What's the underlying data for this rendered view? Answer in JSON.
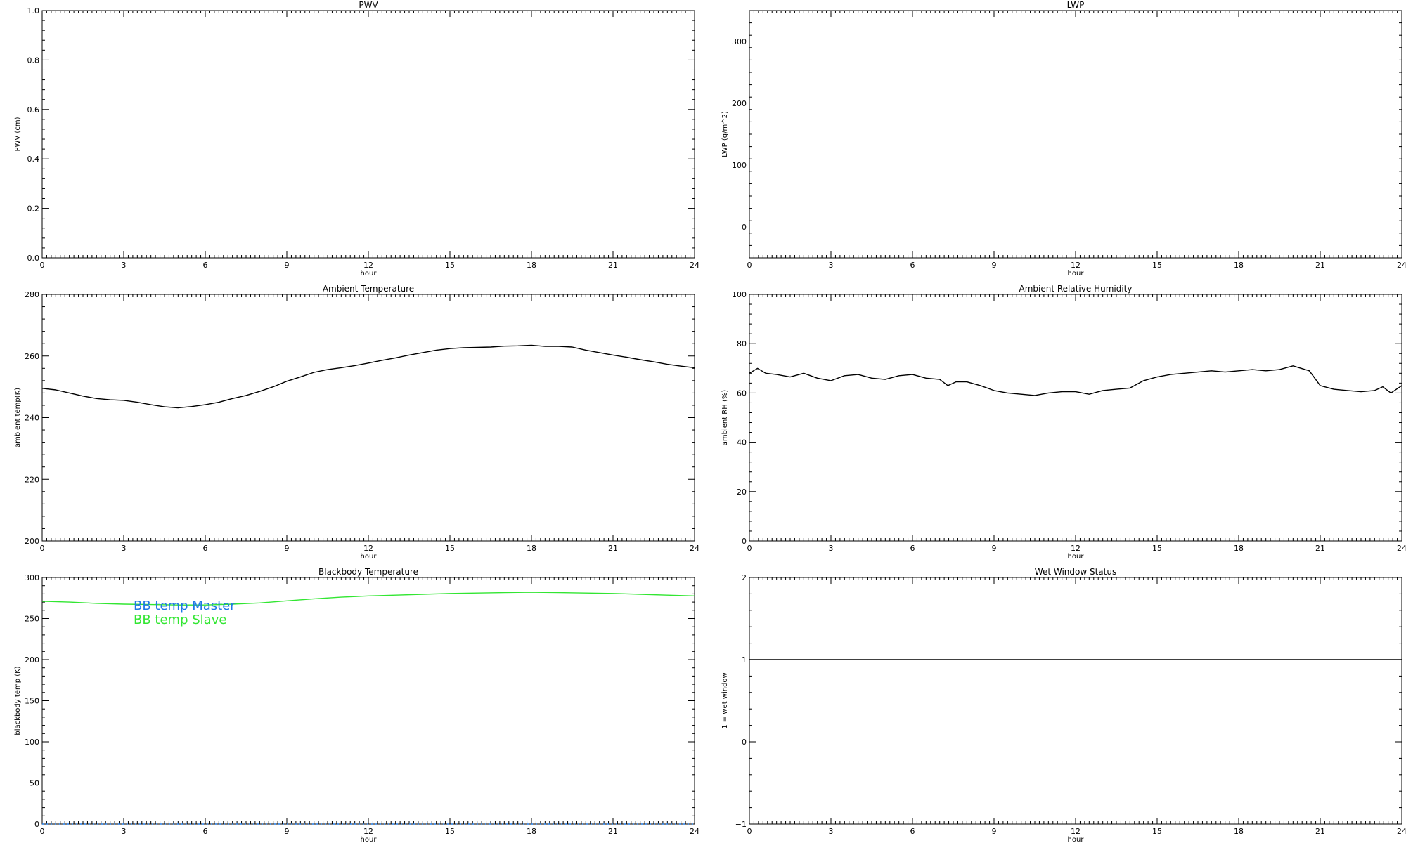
{
  "chart_data": [
    {
      "type": "line",
      "title": "PWV",
      "xlabel": "hour",
      "ylabel": "PWV (cm)",
      "xlim": [
        0,
        24
      ],
      "ylim": [
        0,
        1
      ],
      "xticks": [
        0,
        3,
        6,
        9,
        12,
        15,
        18,
        21,
        24
      ],
      "yticks": [
        0.0,
        0.2,
        0.4,
        0.6,
        0.8,
        1.0
      ],
      "ytick_labels": [
        "0.0",
        "0.2",
        "0.4",
        "0.6",
        "0.8",
        "1.0"
      ],
      "series": []
    },
    {
      "type": "line",
      "title": "LWP",
      "xlabel": "hour",
      "ylabel": "LWP (g/m^2)",
      "xlim": [
        0,
        24
      ],
      "ylim": [
        -50,
        350
      ],
      "xticks": [
        0,
        3,
        6,
        9,
        12,
        15,
        18,
        21,
        24
      ],
      "yticks": [
        0,
        100,
        200,
        300
      ],
      "ytick_labels": [
        "0",
        "100",
        "200",
        "300"
      ],
      "series": []
    },
    {
      "type": "line",
      "title": "Ambient Temperature",
      "xlabel": "hour",
      "ylabel": "ambient temp(K)",
      "xlim": [
        0,
        24
      ],
      "ylim": [
        200,
        280
      ],
      "xticks": [
        0,
        3,
        6,
        9,
        12,
        15,
        18,
        21,
        24
      ],
      "yticks": [
        200,
        220,
        240,
        260,
        280
      ],
      "ytick_labels": [
        "200",
        "220",
        "240",
        "260",
        "280"
      ],
      "series": [
        {
          "color": "#000000",
          "x": [
            0,
            0.5,
            1,
            1.5,
            2,
            2.5,
            3,
            3.5,
            4,
            4.5,
            5,
            5.5,
            6,
            6.5,
            7,
            7.5,
            8,
            8.5,
            9,
            9.5,
            10,
            10.5,
            11,
            11.5,
            12,
            12.5,
            13,
            13.5,
            14,
            14.5,
            15,
            15.5,
            16,
            16.5,
            17,
            17.5,
            18,
            18.5,
            19,
            19.5,
            20,
            20.5,
            21,
            21.5,
            22,
            22.5,
            23,
            23.5,
            24
          ],
          "y": [
            249.5,
            249,
            248,
            247,
            246.2,
            245.8,
            245.6,
            245,
            244.2,
            243.5,
            243.2,
            243.6,
            244.2,
            245,
            246.2,
            247.2,
            248.5,
            250,
            251.8,
            253.2,
            254.7,
            255.6,
            256.2,
            256.9,
            257.7,
            258.6,
            259.4,
            260.3,
            261.1,
            261.9,
            262.4,
            262.7,
            262.8,
            262.9,
            263.2,
            263.3,
            263.5,
            263.1,
            263.1,
            262.9,
            261.9,
            261.1,
            260.3,
            259.6,
            258.8,
            258.1,
            257.3,
            256.7,
            256.2
          ]
        }
      ]
    },
    {
      "type": "line",
      "title": "Ambient Relative Humidity",
      "xlabel": "hour",
      "ylabel": "ambient RH (%)",
      "xlim": [
        0,
        24
      ],
      "ylim": [
        0,
        100
      ],
      "xticks": [
        0,
        3,
        6,
        9,
        12,
        15,
        18,
        21,
        24
      ],
      "yticks": [
        0,
        20,
        40,
        60,
        80,
        100
      ],
      "ytick_labels": [
        "0",
        "20",
        "40",
        "60",
        "80",
        "100"
      ],
      "series": [
        {
          "color": "#000000",
          "x": [
            0,
            0.3,
            0.6,
            1,
            1.5,
            2,
            2.5,
            3,
            3.5,
            4,
            4.5,
            5,
            5.5,
            6,
            6.5,
            7,
            7.3,
            7.6,
            8,
            8.5,
            9,
            9.5,
            10,
            10.5,
            11,
            11.5,
            12,
            12.5,
            13,
            13.5,
            14,
            14.5,
            15,
            15.5,
            16,
            16.5,
            17,
            17.5,
            18,
            18.5,
            19,
            19.5,
            20,
            20.3,
            20.6,
            21,
            21.5,
            22,
            22.5,
            23,
            23.3,
            23.6,
            24
          ],
          "y": [
            68,
            70,
            68,
            67.5,
            66.5,
            68,
            66,
            65,
            67,
            67.5,
            66,
            65.5,
            67,
            67.5,
            66,
            65.5,
            63,
            64.5,
            64.5,
            63,
            61,
            60,
            59.5,
            59,
            60,
            60.5,
            60.5,
            59.5,
            61,
            61.5,
            62,
            65,
            66.5,
            67.5,
            68,
            68.5,
            69,
            68.5,
            69,
            69.5,
            69,
            69.5,
            71,
            70,
            69,
            63,
            61.5,
            61,
            60.5,
            61,
            62.5,
            60,
            63
          ]
        }
      ]
    },
    {
      "type": "line",
      "title": "Blackbody Temperature",
      "xlabel": "hour",
      "ylabel": "blackbody temp (K)",
      "xlim": [
        0,
        24
      ],
      "ylim": [
        0,
        300
      ],
      "xticks": [
        0,
        3,
        6,
        9,
        12,
        15,
        18,
        21,
        24
      ],
      "yticks": [
        0,
        50,
        100,
        150,
        200,
        250,
        300
      ],
      "ytick_labels": [
        "0",
        "50",
        "100",
        "150",
        "200",
        "250",
        "300"
      ],
      "legend": [
        "BB temp Master",
        "BB temp Slave"
      ],
      "legend_colors": [
        "#1e78e6",
        "#32e632"
      ],
      "series": [
        {
          "name": "BB temp Master",
          "color": "#1e78e6",
          "style": "dotted",
          "x": [
            0,
            3,
            6,
            9,
            12,
            15,
            18,
            21,
            24
          ],
          "y": [
            0,
            0,
            0,
            0,
            0,
            0,
            0,
            0,
            0
          ]
        },
        {
          "name": "BB temp Slave",
          "color": "#32e632",
          "x": [
            0,
            1,
            2,
            3,
            4,
            5,
            6,
            7,
            8,
            9,
            10,
            11,
            12,
            13,
            14,
            15,
            16,
            17,
            18,
            19,
            20,
            21,
            22,
            23,
            24
          ],
          "y": [
            271,
            270,
            268.5,
            267.5,
            267,
            266.5,
            266.5,
            267.5,
            269,
            271.5,
            274,
            276,
            277.5,
            278.5,
            279.5,
            280.5,
            281,
            281.5,
            282,
            281.5,
            281,
            280.5,
            279.5,
            278.5,
            277.5
          ]
        }
      ]
    },
    {
      "type": "line",
      "title": "Wet Window Status",
      "xlabel": "hour",
      "ylabel": "1 = wet window",
      "xlim": [
        0,
        24
      ],
      "ylim": [
        -1,
        2
      ],
      "xticks": [
        0,
        3,
        6,
        9,
        12,
        15,
        18,
        21,
        24
      ],
      "yticks": [
        -1,
        0,
        1,
        2
      ],
      "ytick_labels": [
        "−1",
        "0",
        "1",
        "2"
      ],
      "series": [
        {
          "color": "#000000",
          "x": [
            0,
            24
          ],
          "y": [
            1,
            1
          ]
        }
      ]
    }
  ]
}
